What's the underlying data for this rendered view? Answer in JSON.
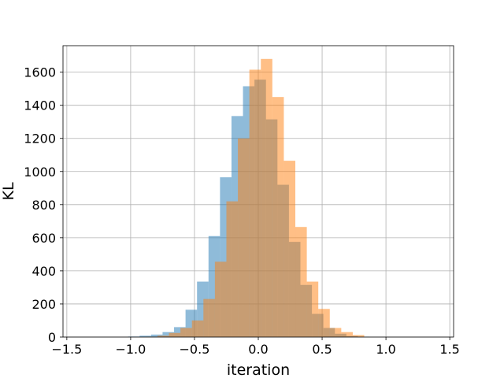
{
  "chart_data": {
    "type": "bar",
    "subtype": "overlapping-histogram",
    "xlabel": "iteration",
    "ylabel": "KL",
    "xlim": [
      -1.53,
      1.53
    ],
    "ylim": [
      0,
      1760
    ],
    "xticks": [
      -1.5,
      -1.0,
      -0.5,
      0.0,
      0.5,
      1.0,
      1.5
    ],
    "xtick_labels": [
      "−1.5",
      "−1.0",
      "−0.5",
      "0.0",
      "0.5",
      "1.0",
      "1.5"
    ],
    "yticks": [
      0,
      200,
      400,
      600,
      800,
      1000,
      1200,
      1400,
      1600
    ],
    "ytick_labels": [
      "0",
      "200",
      "400",
      "600",
      "800",
      "1000",
      "1200",
      "1400",
      "1600"
    ],
    "grid": true,
    "bin_width": 0.09,
    "series": [
      {
        "color": "#1f77b4",
        "opacity": 0.5,
        "bin_starts": [
          -1.02,
          -0.93,
          -0.84,
          -0.75,
          -0.66,
          -0.57,
          -0.48,
          -0.39,
          -0.3,
          -0.21,
          -0.12,
          -0.03,
          0.06,
          0.15,
          0.24,
          0.33,
          0.42,
          0.51,
          0.6,
          0.69,
          0.78
        ],
        "values": [
          3,
          8,
          15,
          30,
          60,
          165,
          335,
          610,
          965,
          1335,
          1515,
          1555,
          1315,
          920,
          575,
          315,
          140,
          55,
          20,
          6,
          2
        ]
      },
      {
        "color": "#ff7f0e",
        "opacity": 0.5,
        "bin_starts": [
          -0.88,
          -0.79,
          -0.7,
          -0.61,
          -0.52,
          -0.43,
          -0.34,
          -0.25,
          -0.16,
          -0.07,
          0.02,
          0.11,
          0.2,
          0.29,
          0.38,
          0.47,
          0.56,
          0.65,
          0.74
        ],
        "values": [
          2,
          8,
          25,
          55,
          100,
          230,
          455,
          820,
          1200,
          1615,
          1680,
          1450,
          1065,
          665,
          335,
          170,
          55,
          30,
          12
        ]
      }
    ]
  }
}
